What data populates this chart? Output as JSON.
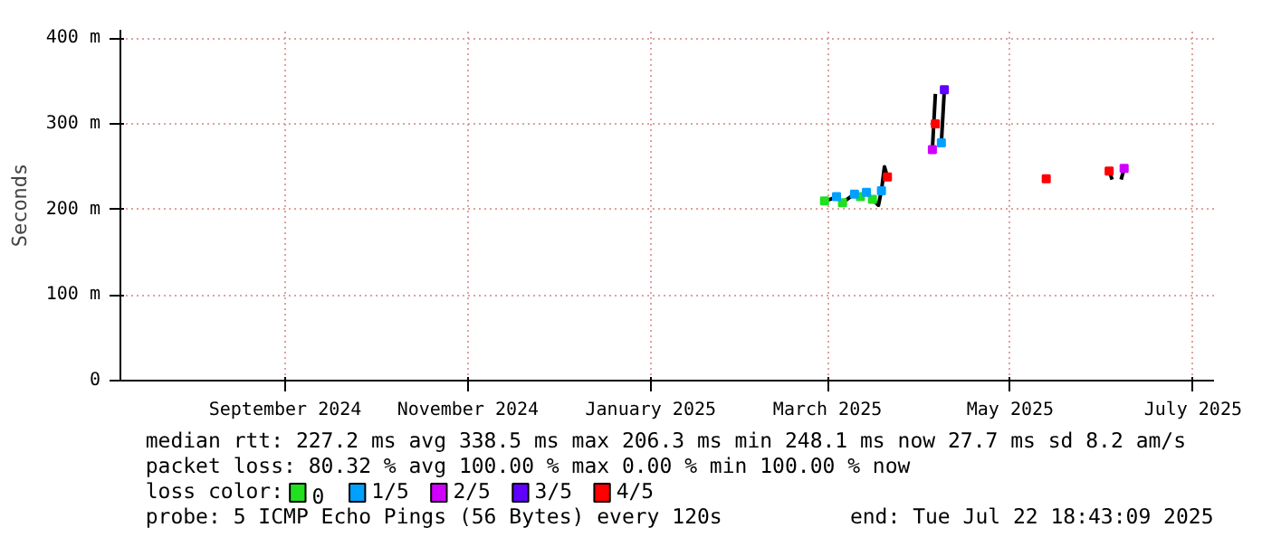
{
  "chart_data": {
    "type": "line",
    "ylabel": "Seconds",
    "legend_title": "loss color:",
    "legend": "bottom",
    "grid": true,
    "line_style": "solid",
    "marker": "none",
    "xlim": [
      "2024-07-22",
      "2025-07-22"
    ],
    "xticks": [
      {
        "value": "2024-09-15",
        "label": "September 2024"
      },
      {
        "value": "2024-11-15",
        "label": "November 2024"
      },
      {
        "value": "2025-01-15",
        "label": "January 2025"
      },
      {
        "value": "2025-03-15",
        "label": "March 2025"
      },
      {
        "value": "2025-05-15",
        "label": "May 2025"
      },
      {
        "value": "2025-07-15",
        "label": "July 2025"
      }
    ],
    "ylim": [
      0,
      410
    ],
    "yticks": [
      0,
      {
        "value": 100,
        "label": "100 m"
      },
      {
        "value": 200,
        "label": "200 m"
      },
      {
        "value": 300,
        "label": "300 m"
      },
      {
        "value": 400,
        "label": "400 m"
      }
    ],
    "series": [
      {
        "color": "#000000",
        "x": [
          "2025-03-14",
          "2025-03-16",
          "2025-03-18",
          "2025-03-20",
          "2025-03-22",
          "2025-03-24",
          "2025-03-26",
          "2025-03-28",
          "2025-03-30",
          "2025-04-01",
          "2025-04-02",
          "2025-04-03",
          "2025-04-04",
          "2025-04-10",
          "2025-04-19",
          "2025-04-20",
          "2025-04-21",
          "2025-04-22",
          "2025-04-23",
          "2025-06-01",
          "2025-06-17",
          "2025-06-18",
          "2025-06-19",
          "2025-06-21",
          "2025-06-22"
        ],
        "values": [
          210,
          212,
          215,
          208,
          213,
          218,
          215,
          220,
          212,
          205,
          222,
          250,
          238,
          null,
          270,
          335,
          null,
          278,
          340,
          null,
          245,
          235,
          null,
          235,
          248
        ]
      },
      {
        "type": "scatter",
        "name": "0",
        "color": "#20e020",
        "marker": "square",
        "x": [
          "2025-03-14",
          "2025-03-20",
          "2025-03-26",
          "2025-03-30"
        ],
        "values": [
          210,
          208,
          215,
          212
        ]
      },
      {
        "type": "scatter",
        "name": "1/5",
        "color": "#00a0ff",
        "marker": "square",
        "x": [
          "2025-03-18",
          "2025-03-24",
          "2025-03-28",
          "2025-04-02",
          "2025-04-22"
        ],
        "values": [
          215,
          218,
          220,
          222,
          278
        ]
      },
      {
        "type": "scatter",
        "name": "2/5",
        "color": "#d000ff",
        "marker": "square",
        "x": [
          "2025-04-19",
          "2025-06-22"
        ],
        "values": [
          270,
          248
        ]
      },
      {
        "type": "scatter",
        "name": "3/5",
        "color": "#6000ff",
        "marker": "square",
        "x": [
          "2025-04-23"
        ],
        "values": [
          340
        ]
      },
      {
        "type": "scatter",
        "name": "4/5",
        "color": "#ff0000",
        "marker": "square",
        "x": [
          "2025-04-04",
          "2025-04-20",
          "2025-05-27",
          "2025-06-17"
        ],
        "values": [
          238,
          300,
          236,
          245
        ]
      }
    ],
    "annotations": [
      "median rtt:  227.2 ms avg  338.5 ms max  206.3 ms min  248.1 ms now  27.7 ms sd  8.2   am/s",
      "packet loss: 80.32 % avg  100.00 % max  0.00 % min  100.00 % now",
      "probe:       5 ICMP Echo Pings (56 Bytes) every 120s",
      "end: Tue Jul 22 18:43:09 2025"
    ]
  }
}
